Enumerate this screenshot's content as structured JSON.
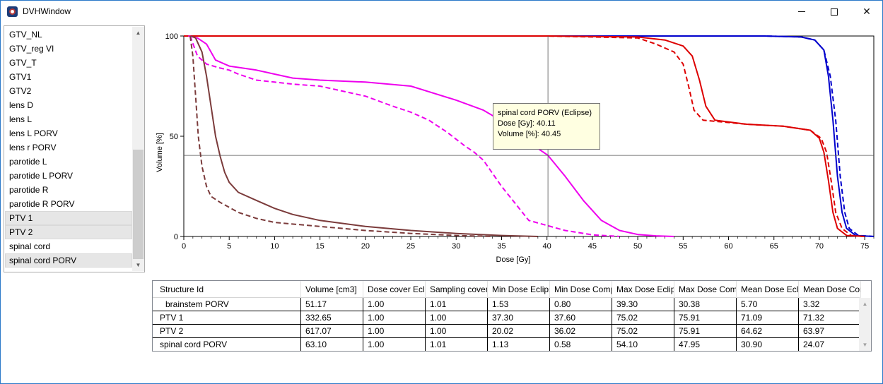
{
  "window": {
    "title": "DVHWindow"
  },
  "structures": [
    "GTV_NL",
    "GTV_reg VI",
    "GTV_T",
    "GTV1",
    "GTV2",
    "lens D",
    "lens L",
    "lens L PORV",
    "lens r PORV",
    "parotide L",
    "parotide L PORV",
    "parotide R",
    "parotide R PORV",
    "PTV 1",
    "PTV 2",
    "spinal cord",
    "spinal cord PORV"
  ],
  "selected_structures": [
    "PTV 1",
    "PTV 2",
    "spinal cord PORV"
  ],
  "tooltip": {
    "title": "spinal cord PORV (Eclipse)",
    "dose": "Dose [Gy]: 40.11",
    "volume": "Volume [%]: 40.45"
  },
  "chart_data": {
    "type": "line",
    "xlabel": "Dose [Gy]",
    "ylabel": "Volume [%]",
    "xlim": [
      0,
      76
    ],
    "ylim": [
      0,
      100
    ],
    "xticks": [
      0,
      5,
      10,
      15,
      20,
      25,
      30,
      35,
      40,
      45,
      50,
      55,
      60,
      65,
      70,
      75
    ],
    "yticks": [
      0,
      50,
      100
    ],
    "crosshair": {
      "x": 40.11,
      "y": 40.45
    },
    "series": [
      {
        "color": "#0000cc",
        "dash": false,
        "x": [
          0,
          64,
          68,
          69.5,
          70.5,
          71,
          71.5,
          72,
          72.5,
          73,
          74,
          76
        ],
        "y": [
          100,
          100,
          99.5,
          98,
          93,
          80,
          58,
          30,
          12,
          4,
          0.5,
          0
        ]
      },
      {
        "color": "#0000cc",
        "dash": true,
        "x": [
          0,
          64,
          68,
          69.5,
          70.5,
          71.2,
          71.8,
          72.3,
          72.8,
          73.3,
          74.3,
          76
        ],
        "y": [
          100,
          100,
          99.5,
          98,
          93,
          80,
          58,
          30,
          12,
          4,
          0.5,
          0
        ]
      },
      {
        "color": "#dd0000",
        "dash": false,
        "x": [
          0,
          40,
          50,
          53,
          55,
          56,
          56.8,
          57.5,
          58.5,
          62,
          66,
          69,
          70,
          70.5,
          71,
          71.5,
          72,
          73,
          75
        ],
        "y": [
          100,
          100,
          99.5,
          98,
          95,
          90,
          78,
          65,
          58,
          56,
          55,
          53,
          49,
          42,
          28,
          12,
          4,
          0.5,
          0
        ]
      },
      {
        "color": "#dd0000",
        "dash": true,
        "x": [
          0,
          40,
          50,
          52,
          54,
          55,
          55.6,
          56.2,
          57.2,
          62,
          66,
          69,
          70.2,
          70.8,
          71.3,
          71.8,
          72.5,
          73.5,
          75
        ],
        "y": [
          100,
          100,
          99,
          96,
          92,
          86,
          75,
          63,
          58,
          56,
          55,
          53,
          49,
          42,
          28,
          12,
          4,
          0.5,
          0
        ]
      },
      {
        "color": "#ee00ee",
        "dash": false,
        "x": [
          0.5,
          1.5,
          2.5,
          3.5,
          5,
          8,
          10,
          12,
          15,
          20,
          25,
          30,
          33,
          36,
          38,
          40.11,
          42,
          44,
          46,
          48,
          50,
          52,
          54
        ],
        "y": [
          100,
          99,
          96,
          88,
          85,
          83,
          81,
          79,
          78,
          77,
          75,
          68,
          63,
          55,
          47,
          40.45,
          30,
          18,
          8,
          3,
          1,
          0.3,
          0
        ]
      },
      {
        "color": "#ee00ee",
        "dash": true,
        "x": [
          0.7,
          1.5,
          2.5,
          4,
          5,
          6,
          8,
          10,
          12,
          15,
          20,
          23,
          25,
          27,
          29,
          31,
          32,
          33,
          35,
          38,
          42,
          45,
          48
        ],
        "y": [
          100,
          90,
          86,
          84,
          83,
          81,
          78,
          77,
          76,
          75,
          70,
          65,
          62,
          58,
          52,
          45,
          42,
          38,
          25,
          8,
          3,
          0.8,
          0
        ]
      },
      {
        "color": "#7b3b3b",
        "dash": false,
        "x": [
          0.8,
          1.3,
          2,
          2.5,
          3,
          3.5,
          4,
          4.5,
          5,
          6,
          8,
          10,
          12,
          15,
          20,
          25,
          30,
          35,
          39
        ],
        "y": [
          100,
          99,
          92,
          80,
          65,
          50,
          40,
          32,
          27,
          22,
          18,
          14,
          11,
          8,
          5,
          3,
          1.5,
          0.5,
          0
        ]
      },
      {
        "color": "#7b3b3b",
        "dash": true,
        "x": [
          0.7,
          1,
          1.3,
          1.6,
          2,
          2.5,
          3,
          4,
          6,
          8,
          10,
          15,
          20,
          25,
          30,
          34
        ],
        "y": [
          100,
          90,
          70,
          50,
          35,
          25,
          20,
          17,
          12,
          9,
          7,
          5,
          3,
          1.5,
          0.5,
          0
        ]
      }
    ]
  },
  "table": {
    "headers": [
      "Structure Id",
      "Volume [cm3]",
      "Dose cover Eclipse",
      "Sampling coverage",
      "Min Dose Eclipse",
      "Min Dose Comp",
      "Max Dose Eclipse",
      "Max Dose Comp",
      "Mean Dose Eclipse",
      "Mean Dose Comp"
    ],
    "rows": [
      [
        "brainstem PORV",
        "51.17",
        "1.00",
        "1.01",
        "1.53",
        "0.80",
        "39.30",
        "30.38",
        "5.70",
        "3.32"
      ],
      [
        "PTV 1",
        "332.65",
        "1.00",
        "1.00",
        "37.30",
        "37.60",
        "75.02",
        "75.91",
        "71.09",
        "71.32"
      ],
      [
        "PTV 2",
        "617.07",
        "1.00",
        "1.00",
        "20.02",
        "36.02",
        "75.02",
        "75.91",
        "64.62",
        "63.97"
      ],
      [
        "spinal cord PORV",
        "63.10",
        "1.00",
        "1.01",
        "1.13",
        "0.58",
        "54.10",
        "47.95",
        "30.90",
        "24.07"
      ]
    ]
  }
}
